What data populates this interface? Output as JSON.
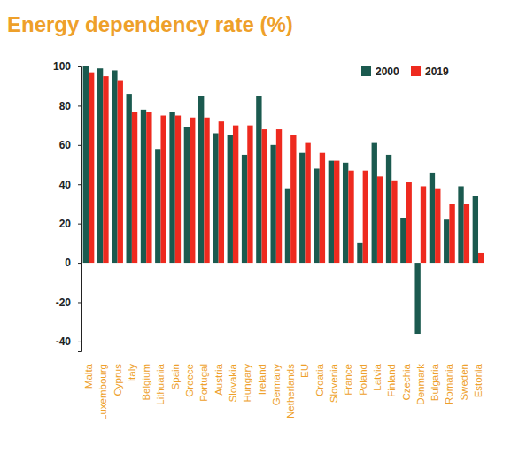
{
  "chart_data": {
    "type": "bar",
    "title": "Energy dependency rate (%)",
    "categories": [
      "Malta",
      "Luxembourg",
      "Cyprus",
      "Italy",
      "Belgium",
      "Lithuania",
      "Spain",
      "Greece",
      "Portugal",
      "Austria",
      "Slovakia",
      "Hungary",
      "Ireland",
      "Germany",
      "Netherlands",
      "EU",
      "Croatia",
      "Slovenia",
      "France",
      "Poland",
      "Latvia",
      "Finland",
      "Czechia",
      "Denmark",
      "Bulgaria",
      "Romania",
      "Sweden",
      "Estonia"
    ],
    "series": [
      {
        "name": "2000",
        "color": "#1b5a4f",
        "values": [
          100,
          99,
          98,
          86,
          78,
          58,
          77,
          69,
          85,
          66,
          65,
          55,
          85,
          60,
          38,
          56,
          48,
          52,
          51,
          10,
          61,
          55,
          23,
          -36,
          46,
          22,
          39,
          34
        ]
      },
      {
        "name": "2019",
        "color": "#ee2a1f",
        "values": [
          97,
          95,
          93,
          77,
          77,
          75,
          75,
          74,
          74,
          72,
          70,
          70,
          68,
          68,
          65,
          61,
          56,
          52,
          47,
          47,
          44,
          42,
          41,
          39,
          38,
          30,
          30,
          5
        ]
      }
    ],
    "ylim": [
      -45,
      100
    ],
    "yticks": [
      -40,
      -20,
      0,
      20,
      40,
      60,
      80,
      100
    ],
    "grid": false,
    "legend": "top-right"
  }
}
